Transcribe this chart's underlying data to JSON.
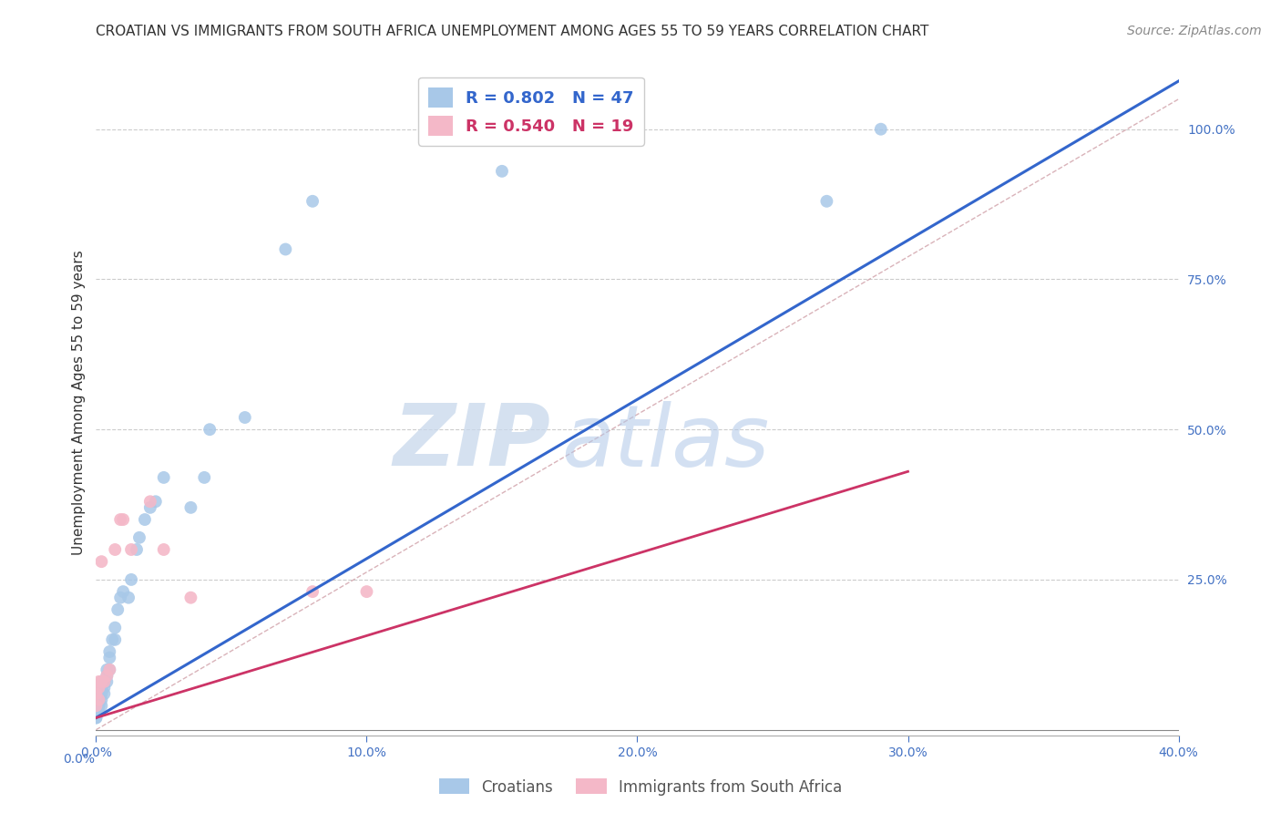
{
  "title": "CROATIAN VS IMMIGRANTS FROM SOUTH AFRICA UNEMPLOYMENT AMONG AGES 55 TO 59 YEARS CORRELATION CHART",
  "source": "Source: ZipAtlas.com",
  "ylabel": "Unemployment Among Ages 55 to 59 years",
  "background_color": "#ffffff",
  "watermark_zip": "ZIP",
  "watermark_atlas": "atlas",
  "blue_label": "Croatians",
  "pink_label": "Immigrants from South Africa",
  "blue_R": "0.802",
  "blue_N": "47",
  "pink_R": "0.540",
  "pink_N": "19",
  "xlim": [
    0.0,
    0.4
  ],
  "ylim": [
    -0.01,
    1.1
  ],
  "right_yticks": [
    0.0,
    0.25,
    0.5,
    0.75,
    1.0
  ],
  "right_yticklabels": [
    "",
    "25.0%",
    "50.0%",
    "75.0%",
    "100.0%"
  ],
  "xticks": [
    0.0,
    0.1,
    0.2,
    0.3,
    0.4
  ],
  "xticklabels": [
    "0.0%",
    "10.0%",
    "20.0%",
    "30.0%",
    "40.0%"
  ],
  "blue_scatter_x": [
    0.0,
    0.0,
    0.0,
    0.001,
    0.001,
    0.001,
    0.001,
    0.001,
    0.001,
    0.001,
    0.002,
    0.002,
    0.002,
    0.002,
    0.002,
    0.003,
    0.003,
    0.003,
    0.004,
    0.004,
    0.004,
    0.005,
    0.005,
    0.005,
    0.006,
    0.007,
    0.007,
    0.008,
    0.009,
    0.01,
    0.012,
    0.013,
    0.015,
    0.016,
    0.018,
    0.02,
    0.022,
    0.025,
    0.035,
    0.04,
    0.042,
    0.055,
    0.07,
    0.08,
    0.15,
    0.27,
    0.29
  ],
  "blue_scatter_y": [
    0.02,
    0.02,
    0.03,
    0.03,
    0.04,
    0.04,
    0.05,
    0.05,
    0.06,
    0.07,
    0.04,
    0.05,
    0.06,
    0.07,
    0.08,
    0.06,
    0.07,
    0.08,
    0.08,
    0.09,
    0.1,
    0.1,
    0.12,
    0.13,
    0.15,
    0.15,
    0.17,
    0.2,
    0.22,
    0.23,
    0.22,
    0.25,
    0.3,
    0.32,
    0.35,
    0.37,
    0.38,
    0.42,
    0.37,
    0.42,
    0.5,
    0.52,
    0.8,
    0.88,
    0.93,
    0.88,
    1.0
  ],
  "pink_scatter_x": [
    0.0,
    0.0,
    0.001,
    0.001,
    0.001,
    0.002,
    0.002,
    0.003,
    0.004,
    0.005,
    0.007,
    0.009,
    0.01,
    0.013,
    0.02,
    0.025,
    0.035,
    0.08,
    0.1
  ],
  "pink_scatter_y": [
    0.04,
    0.06,
    0.05,
    0.07,
    0.08,
    0.08,
    0.28,
    0.08,
    0.09,
    0.1,
    0.3,
    0.35,
    0.35,
    0.3,
    0.38,
    0.3,
    0.22,
    0.23,
    0.23
  ],
  "blue_line_x": [
    0.0,
    0.4
  ],
  "blue_line_y": [
    0.02,
    1.08
  ],
  "pink_line_x": [
    0.0,
    0.3
  ],
  "pink_line_y": [
    0.02,
    0.43
  ],
  "ref_line_x": [
    0.0,
    0.4
  ],
  "ref_line_y": [
    0.0,
    1.05
  ],
  "title_fontsize": 11,
  "source_fontsize": 10,
  "axis_label_fontsize": 11,
  "tick_fontsize": 10,
  "legend_fontsize": 13,
  "scatter_size": 100,
  "blue_color": "#a8c8e8",
  "blue_line_color": "#3366cc",
  "pink_color": "#f4b8c8",
  "pink_line_color": "#cc3366",
  "ref_line_color": "#d0a0a8",
  "grid_color": "#cccccc",
  "axis_color": "#4472c4",
  "right_tick_color": "#4472c4"
}
